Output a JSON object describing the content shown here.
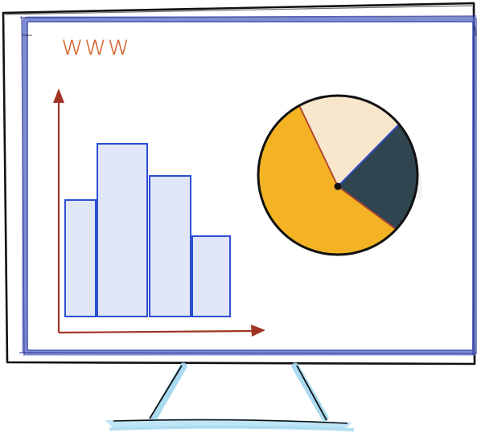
{
  "screen": {
    "text": "www"
  },
  "chart_data": [
    {
      "type": "bar",
      "categories": [
        "",
        "",
        "",
        ""
      ],
      "values": [
        58,
        86,
        70,
        40
      ],
      "ylim": [
        0,
        100
      ],
      "grid": false,
      "legend": "none"
    },
    {
      "type": "pie",
      "values": [
        55,
        23,
        22
      ],
      "colors": [
        "#f3b324",
        "#2f4550",
        "#f8e6cd"
      ],
      "legend": "none"
    }
  ],
  "colors": {
    "frame_blue": "#6b79c9",
    "axis_red": "#a13424",
    "bar_fill": "#e1e6f8",
    "bar_stroke": "#2c4fd1",
    "stand_blue": "#9fd6ef",
    "outline": "#111111",
    "www_orange": "#d7632f"
  }
}
